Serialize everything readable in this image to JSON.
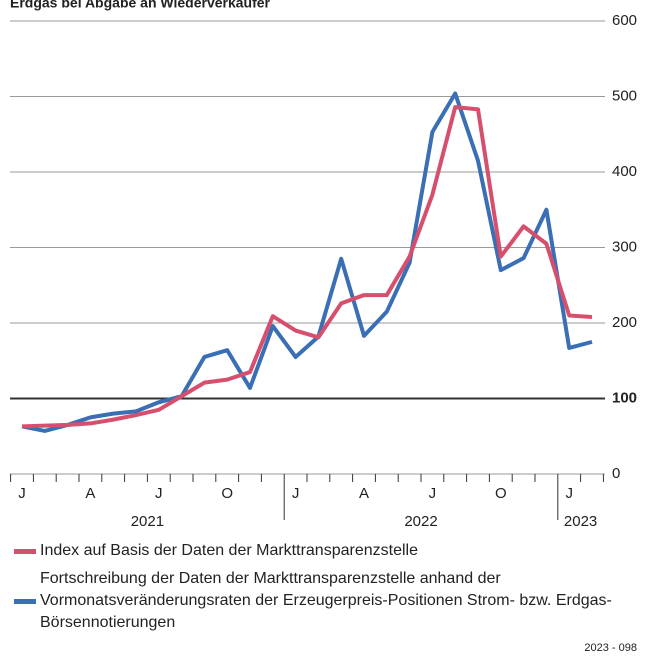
{
  "chart_data": {
    "type": "line",
    "title": "Erdgas bei Abgabe an Wiederverkäufer",
    "categories": [
      "J",
      null,
      null,
      "A",
      null,
      null,
      "J",
      null,
      null,
      "O",
      null,
      null,
      "J",
      null,
      null,
      "A",
      null,
      null,
      "J",
      null,
      null,
      "O",
      null,
      null,
      "J",
      null
    ],
    "years": [
      "2021",
      "2022",
      "2023"
    ],
    "series": [
      {
        "name": "Index auf Basis der Daten der Markttransparenzstelle",
        "color": "#d6506e",
        "values": [
          63,
          64,
          65,
          67,
          72,
          78,
          85,
          103,
          121,
          125,
          135,
          209,
          190,
          181,
          226,
          237,
          237,
          288,
          370,
          486,
          483,
          288,
          328,
          305,
          210,
          208
        ]
      },
      {
        "name": "Fortschreibung der Daten der Markttransparenzstelle anhand der Vormonatsveränderungsraten der Erzeugerpreis-Positionen Strom- bzw. Erdgas-Börsennotierungen",
        "color": "#3a6fb5",
        "values": [
          63,
          57,
          65,
          75,
          80,
          83,
          95,
          103,
          155,
          164,
          114,
          196,
          155,
          182,
          285,
          183,
          215,
          280,
          453,
          504,
          415,
          270,
          286,
          350,
          167,
          175
        ]
      }
    ],
    "ylim": [
      0,
      600
    ],
    "yticks": [
      0,
      100,
      200,
      300,
      400,
      500,
      600
    ],
    "baseline": 100,
    "grid": true,
    "source": "2023 - 098"
  }
}
